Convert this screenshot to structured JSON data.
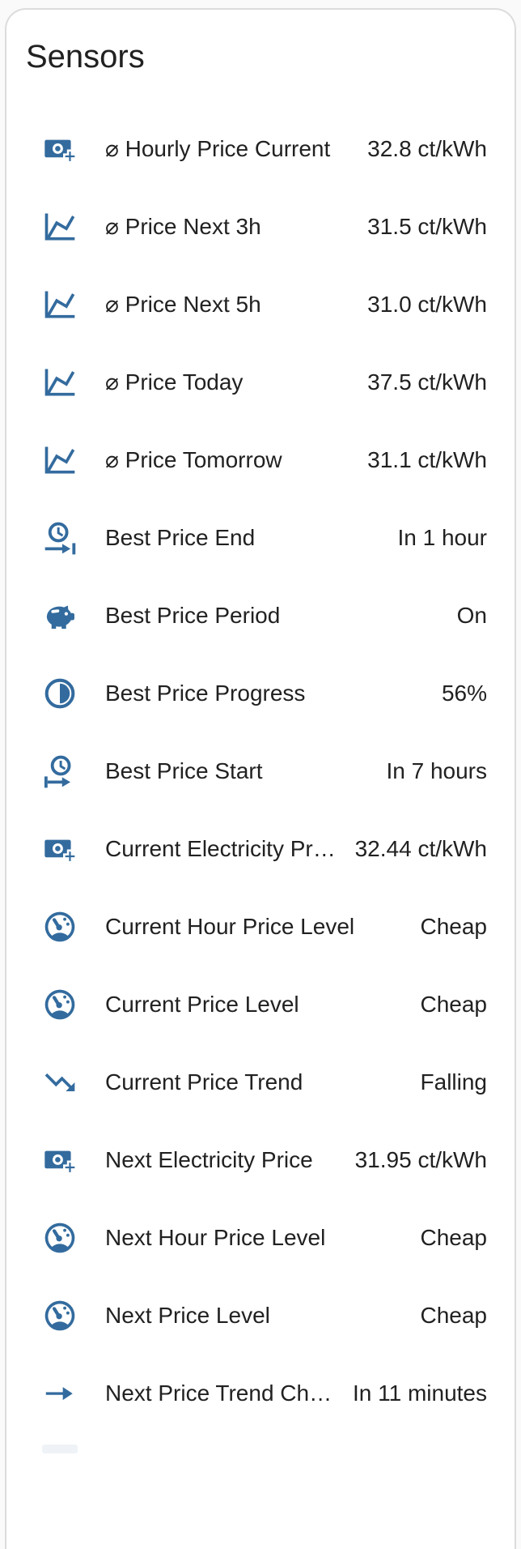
{
  "page": {
    "background_color": "#fafafa"
  },
  "card": {
    "title": "Sensors",
    "background_color": "#ffffff",
    "accent_color": "#336b9e",
    "text_color": "#212121"
  },
  "sensors": [
    {
      "icon": "cash-plus-icon",
      "name": "⌀ Hourly Price Current",
      "value": "32.8 ct/kWh"
    },
    {
      "icon": "chart-line-icon",
      "name": "⌀ Price Next 3h",
      "value": "31.5 ct/kWh"
    },
    {
      "icon": "chart-line-icon",
      "name": "⌀ Price Next 5h",
      "value": "31.0 ct/kWh"
    },
    {
      "icon": "chart-line-icon",
      "name": "⌀ Price Today",
      "value": "37.5 ct/kWh"
    },
    {
      "icon": "chart-line-icon",
      "name": "⌀ Price Tomorrow",
      "value": "31.1 ct/kWh"
    },
    {
      "icon": "clock-end-icon",
      "name": "Best Price End",
      "value": "In 1 hour"
    },
    {
      "icon": "piggy-bank-icon",
      "name": "Best Price Period",
      "value": "On"
    },
    {
      "icon": "circle-half-full-icon",
      "name": "Best Price Progress",
      "value": "56%"
    },
    {
      "icon": "clock-start-icon",
      "name": "Best Price Start",
      "value": "In 7 hours"
    },
    {
      "icon": "cash-plus-icon",
      "name": "Current Electricity Price",
      "value": "32.44 ct/kWh"
    },
    {
      "icon": "gauge-icon",
      "name": "Current Hour Price Level",
      "value": "Cheap"
    },
    {
      "icon": "gauge-icon",
      "name": "Current Price Level",
      "value": "Cheap"
    },
    {
      "icon": "trending-down-icon",
      "name": "Current Price Trend",
      "value": "Falling"
    },
    {
      "icon": "cash-plus-icon",
      "name": "Next Electricity Price",
      "value": "31.95 ct/kWh"
    },
    {
      "icon": "gauge-icon",
      "name": "Next Hour Price Level",
      "value": "Cheap"
    },
    {
      "icon": "gauge-icon",
      "name": "Next Price Level",
      "value": "Cheap"
    },
    {
      "icon": "arrow-right-icon",
      "name": "Next Price Trend Change",
      "value": "In 11 minutes"
    }
  ]
}
